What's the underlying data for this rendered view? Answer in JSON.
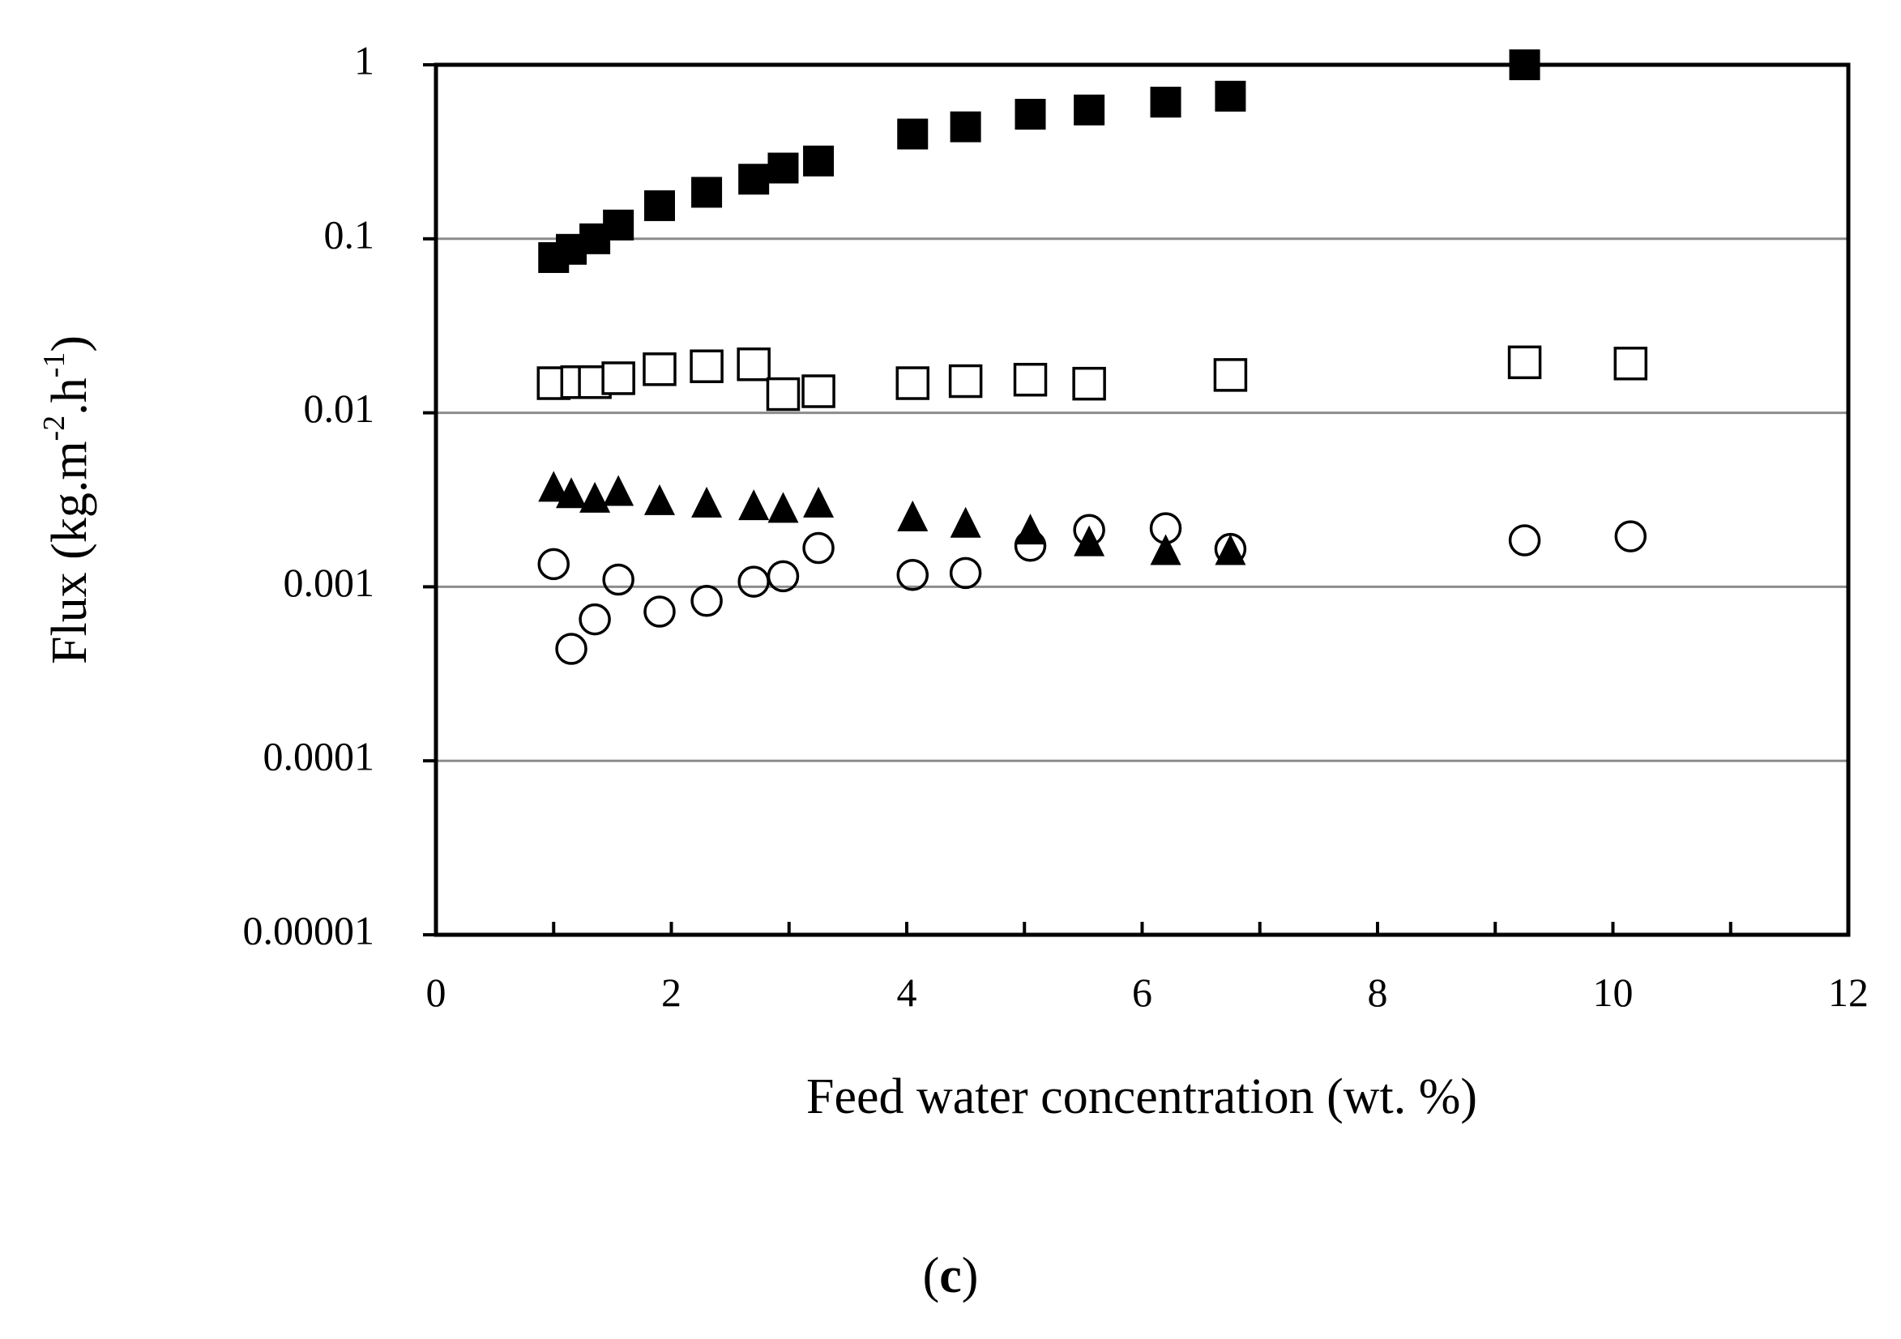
{
  "chart_data": {
    "type": "scatter",
    "title": "",
    "xlabel": "Feed water concentration (wt. %)",
    "ylabel_parts": [
      "Flux (kg.m",
      "-2",
      ".h",
      "-1",
      ")"
    ],
    "panel_label": {
      "open": "(",
      "letter": "c",
      "close": ")"
    },
    "xlim": [
      0,
      12
    ],
    "ylim": [
      1e-05,
      1
    ],
    "yscale": "log",
    "x_ticks": [
      0,
      2,
      4,
      6,
      8,
      10,
      12
    ],
    "x_tick_labels": [
      "0",
      "2",
      "4",
      "6",
      "8",
      "10",
      "12"
    ],
    "y_ticks": [
      1e-05,
      0.0001,
      0.001,
      0.01,
      0.1,
      1
    ],
    "y_tick_labels": [
      "0.00001",
      "0.0001",
      "0.001",
      "0.01",
      "0.1",
      "1"
    ],
    "grid": "horizontal",
    "series": [
      {
        "name": "filled squares",
        "marker": "filled-square",
        "x": [
          1.0,
          1.15,
          1.35,
          1.55,
          1.9,
          2.3,
          2.7,
          2.95,
          3.25,
          4.05,
          4.5,
          5.05,
          5.55,
          6.2,
          6.75,
          9.25
        ],
        "y": [
          0.078,
          0.087,
          0.1,
          0.12,
          0.155,
          0.185,
          0.22,
          0.255,
          0.28,
          0.4,
          0.44,
          0.52,
          0.55,
          0.61,
          0.66,
          1.0
        ]
      },
      {
        "name": "open squares",
        "marker": "open-square",
        "x": [
          1.0,
          1.2,
          1.35,
          1.55,
          1.9,
          2.3,
          2.7,
          2.95,
          3.25,
          4.05,
          4.5,
          5.05,
          5.55,
          6.75,
          9.25,
          10.15
        ],
        "y": [
          0.0148,
          0.015,
          0.015,
          0.0158,
          0.0178,
          0.0185,
          0.019,
          0.0128,
          0.0133,
          0.0148,
          0.0152,
          0.0155,
          0.0147,
          0.0165,
          0.0195,
          0.0192
        ]
      },
      {
        "name": "filled triangles",
        "marker": "filled-triangle",
        "x": [
          1.0,
          1.15,
          1.35,
          1.55,
          1.9,
          2.3,
          2.7,
          2.95,
          3.25,
          4.05,
          4.5,
          5.05,
          5.55,
          6.2,
          6.75
        ],
        "y": [
          0.0037,
          0.0034,
          0.0032,
          0.0035,
          0.0031,
          0.003,
          0.0029,
          0.0028,
          0.003,
          0.0025,
          0.0023,
          0.0021,
          0.0018,
          0.0016,
          0.0016
        ]
      },
      {
        "name": "open circles",
        "marker": "open-circle",
        "x": [
          1.0,
          1.15,
          1.35,
          1.55,
          1.9,
          2.3,
          2.7,
          2.95,
          3.25,
          4.05,
          4.5,
          5.05,
          5.55,
          6.2,
          6.75,
          9.25,
          10.15
        ],
        "y": [
          0.00135,
          0.00044,
          0.00065,
          0.0011,
          0.00072,
          0.00083,
          0.00107,
          0.00115,
          0.00167,
          0.00117,
          0.0012,
          0.00172,
          0.00212,
          0.00217,
          0.00165,
          0.00185,
          0.00195
        ]
      }
    ]
  },
  "colors": {
    "axis": "#000000",
    "grid": "#8c8c8c",
    "marker": "#000000",
    "background": "#ffffff"
  }
}
